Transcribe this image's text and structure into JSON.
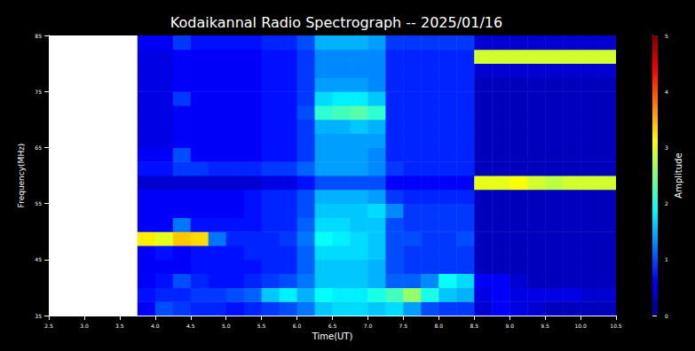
{
  "chart_data": {
    "type": "heatmap",
    "title": "Kodaikannal Radio Spectrograph -- 2025/01/16",
    "x_label": "Time(UT)",
    "y_label": "Frequency(MHz)",
    "x_bins": [
      2.5,
      2.75,
      3.0,
      3.25,
      3.5,
      3.75,
      4.0,
      4.25,
      4.5,
      4.75,
      5.0,
      5.25,
      5.5,
      5.75,
      6.0,
      6.25,
      6.5,
      6.75,
      7.0,
      7.25,
      7.5,
      7.75,
      8.0,
      8.25,
      8.5,
      8.75,
      9.0,
      9.25,
      9.5,
      9.75,
      10.0,
      10.25,
      10.5
    ],
    "y_bins": [
      35,
      37.5,
      40,
      42.5,
      45,
      47.5,
      50,
      52.5,
      55,
      57.5,
      60,
      62.5,
      65,
      67.5,
      70,
      72.5,
      75,
      77.5,
      80,
      82.5,
      85
    ],
    "cells": [
      [
        null,
        null,
        null,
        null,
        null,
        0.6,
        1.0,
        0.9,
        0.8,
        0.8,
        0.7,
        0.8,
        0.9,
        1.0,
        1.2,
        1.6,
        1.7,
        1.7,
        1.6,
        1.7,
        1.4,
        1.0,
        0.9,
        0.9,
        0.4,
        0.6,
        0.5,
        0.4,
        0.3,
        0.3,
        0.3,
        0.3
      ],
      [
        null,
        null,
        null,
        null,
        null,
        0.7,
        0.8,
        0.8,
        0.9,
        0.9,
        1.0,
        1.1,
        1.6,
        1.8,
        1.5,
        1.9,
        1.8,
        1.8,
        2.0,
        2.2,
        2.6,
        2.0,
        1.6,
        1.5,
        0.5,
        0.6,
        0.5,
        0.5,
        0.5,
        0.5,
        0.4,
        0.4
      ],
      [
        null,
        null,
        null,
        null,
        null,
        0.6,
        0.7,
        1.0,
        0.8,
        0.7,
        0.7,
        0.8,
        0.9,
        1.0,
        1.2,
        1.6,
        1.6,
        1.6,
        1.5,
        1.1,
        1.1,
        1.3,
        1.9,
        1.7,
        0.6,
        0.6,
        0.4,
        0.3,
        0.3,
        0.3,
        0.3,
        0.3
      ],
      [
        null,
        null,
        null,
        null,
        null,
        0.6,
        0.6,
        0.6,
        0.7,
        0.7,
        0.7,
        0.7,
        0.8,
        0.8,
        1.1,
        1.6,
        1.6,
        1.6,
        1.5,
        1.0,
        0.9,
        0.9,
        0.9,
        0.9,
        0.3,
        0.3,
        0.3,
        0.3,
        0.3,
        0.3,
        0.3,
        0.3
      ],
      [
        null,
        null,
        null,
        null,
        null,
        0.6,
        0.7,
        0.6,
        0.7,
        0.7,
        0.7,
        0.8,
        0.8,
        0.8,
        1.1,
        1.7,
        1.7,
        1.7,
        1.6,
        1.0,
        0.9,
        0.9,
        0.9,
        0.9,
        0.3,
        0.3,
        0.3,
        0.3,
        0.3,
        0.3,
        0.3,
        0.3
      ],
      [
        null,
        null,
        null,
        null,
        null,
        3.2,
        3.0,
        3.4,
        3.3,
        1.2,
        0.8,
        0.8,
        0.8,
        0.9,
        1.2,
        1.9,
        1.8,
        1.7,
        1.6,
        1.0,
        1.0,
        0.9,
        0.9,
        1.0,
        0.3,
        0.3,
        0.3,
        0.3,
        0.3,
        0.3,
        0.3,
        0.3
      ],
      [
        null,
        null,
        null,
        null,
        null,
        0.6,
        0.6,
        1.2,
        0.7,
        0.7,
        0.7,
        0.7,
        0.8,
        0.8,
        1.1,
        1.7,
        1.7,
        1.6,
        1.6,
        1.0,
        0.9,
        0.9,
        0.9,
        0.9,
        0.3,
        0.3,
        0.3,
        0.3,
        0.3,
        0.3,
        0.3,
        0.3
      ],
      [
        null,
        null,
        null,
        null,
        null,
        0.6,
        0.6,
        0.6,
        0.6,
        0.6,
        0.6,
        0.7,
        0.8,
        0.8,
        1.0,
        1.6,
        1.6,
        1.6,
        1.7,
        1.3,
        0.9,
        0.9,
        0.9,
        0.9,
        0.3,
        0.3,
        0.3,
        0.3,
        0.3,
        0.3,
        0.3,
        0.3
      ],
      [
        null,
        null,
        null,
        null,
        null,
        0.6,
        0.6,
        0.6,
        0.6,
        0.6,
        0.6,
        0.7,
        0.8,
        0.8,
        1.0,
        1.5,
        1.5,
        1.5,
        1.4,
        0.9,
        0.8,
        0.8,
        0.8,
        0.8,
        0.3,
        0.3,
        0.3,
        0.3,
        0.3,
        0.3,
        0.3,
        0.3
      ],
      [
        null,
        null,
        null,
        null,
        null,
        0.4,
        0.4,
        0.4,
        0.4,
        0.4,
        0.4,
        0.4,
        0.5,
        0.5,
        0.7,
        1.0,
        1.0,
        1.0,
        1.0,
        0.6,
        0.6,
        0.6,
        0.6,
        0.6,
        3.0,
        3.0,
        3.1,
        2.9,
        2.8,
        2.9,
        2.9,
        2.9
      ],
      [
        null,
        null,
        null,
        null,
        null,
        0.7,
        0.7,
        0.9,
        0.9,
        0.8,
        0.8,
        0.8,
        0.9,
        0.9,
        1.1,
        1.4,
        1.4,
        1.4,
        1.3,
        0.9,
        0.8,
        0.8,
        0.8,
        0.8,
        0.3,
        0.3,
        0.3,
        0.3,
        0.3,
        0.3,
        0.3,
        0.3
      ],
      [
        null,
        null,
        null,
        null,
        null,
        0.6,
        0.6,
        1.0,
        0.6,
        0.6,
        0.6,
        0.6,
        0.7,
        0.7,
        0.9,
        1.4,
        1.4,
        1.4,
        1.3,
        0.8,
        0.8,
        0.8,
        0.8,
        0.8,
        0.3,
        0.3,
        0.3,
        0.3,
        0.3,
        0.3,
        0.3,
        0.3
      ],
      [
        null,
        null,
        null,
        null,
        null,
        0.5,
        0.5,
        0.6,
        0.6,
        0.6,
        0.6,
        0.6,
        0.7,
        0.7,
        0.9,
        1.4,
        1.4,
        1.4,
        1.4,
        0.8,
        0.8,
        0.8,
        0.8,
        0.8,
        0.3,
        0.3,
        0.3,
        0.3,
        0.3,
        0.3,
        0.3,
        0.3
      ],
      [
        null,
        null,
        null,
        null,
        null,
        0.5,
        0.5,
        0.6,
        0.6,
        0.6,
        0.6,
        0.6,
        0.7,
        0.7,
        0.9,
        1.5,
        1.5,
        1.6,
        1.5,
        0.8,
        0.8,
        0.8,
        0.8,
        0.8,
        0.3,
        0.3,
        0.3,
        0.3,
        0.3,
        0.3,
        0.3,
        0.3
      ],
      [
        null,
        null,
        null,
        null,
        null,
        0.5,
        0.5,
        0.6,
        0.6,
        0.6,
        0.6,
        0.6,
        0.7,
        0.7,
        1.0,
        2.1,
        2.2,
        2.3,
        2.1,
        0.8,
        0.8,
        0.8,
        0.8,
        0.8,
        0.3,
        0.3,
        0.3,
        0.3,
        0.3,
        0.3,
        0.3,
        0.3
      ],
      [
        null,
        null,
        null,
        null,
        null,
        0.5,
        0.5,
        0.9,
        0.6,
        0.6,
        0.6,
        0.6,
        0.7,
        0.7,
        0.9,
        1.7,
        1.8,
        1.8,
        1.6,
        0.8,
        0.8,
        0.8,
        0.8,
        0.8,
        0.3,
        0.3,
        0.3,
        0.3,
        0.3,
        0.3,
        0.3,
        0.3
      ],
      [
        null,
        null,
        null,
        null,
        null,
        0.5,
        0.5,
        0.6,
        0.6,
        0.6,
        0.6,
        0.6,
        0.7,
        0.7,
        0.9,
        1.4,
        1.4,
        1.4,
        1.3,
        0.8,
        0.8,
        0.8,
        0.8,
        0.8,
        0.3,
        0.3,
        0.3,
        0.3,
        0.3,
        0.3,
        0.3,
        0.3
      ],
      [
        null,
        null,
        null,
        null,
        null,
        0.5,
        0.5,
        0.6,
        0.6,
        0.6,
        0.6,
        0.6,
        0.7,
        0.7,
        0.9,
        1.3,
        1.3,
        1.3,
        1.3,
        0.8,
        0.8,
        0.8,
        0.8,
        0.8,
        0.4,
        0.4,
        0.4,
        0.4,
        0.4,
        0.4,
        0.4,
        0.4
      ],
      [
        null,
        null,
        null,
        null,
        null,
        0.5,
        0.5,
        0.6,
        0.6,
        0.6,
        0.6,
        0.6,
        0.7,
        0.7,
        0.9,
        1.3,
        1.3,
        1.3,
        1.3,
        0.8,
        0.8,
        0.8,
        0.8,
        0.8,
        2.9,
        2.9,
        2.9,
        2.9,
        2.9,
        2.9,
        2.9,
        2.9
      ],
      [
        null,
        null,
        null,
        null,
        null,
        0.6,
        0.6,
        0.9,
        0.7,
        0.7,
        0.7,
        0.7,
        0.8,
        0.8,
        1.0,
        1.5,
        1.5,
        1.5,
        1.4,
        0.9,
        0.9,
        0.9,
        0.9,
        0.9,
        0.4,
        0.4,
        0.4,
        0.4,
        0.4,
        0.4,
        0.4,
        0.4
      ]
    ],
    "xlim": [
      2.5,
      10.5
    ],
    "xticks": [
      {
        "value": 2.5,
        "label": "2.5"
      },
      {
        "value": 3,
        "label": "3.0"
      },
      {
        "value": 3.5,
        "label": "3.5"
      },
      {
        "value": 4,
        "label": "4.0"
      },
      {
        "value": 4.5,
        "label": "4.5"
      },
      {
        "value": 5,
        "label": "5.0"
      },
      {
        "value": 5.5,
        "label": "5.5"
      },
      {
        "value": 6,
        "label": "6.0"
      },
      {
        "value": 6.5,
        "label": "6.5"
      },
      {
        "value": 7,
        "label": "7.0"
      },
      {
        "value": 7.5,
        "label": "7.5"
      },
      {
        "value": 8,
        "label": "8.0"
      },
      {
        "value": 8.5,
        "label": "8.5"
      },
      {
        "value": 9,
        "label": "9.0"
      },
      {
        "value": 9.5,
        "label": "9.5"
      },
      {
        "value": 10,
        "label": "10.0"
      },
      {
        "value": 10.5,
        "label": "10.5"
      }
    ],
    "ylim": [
      35,
      85
    ],
    "yticks": [
      35,
      45,
      55,
      65,
      75,
      85
    ],
    "colorbar": {
      "label": "Amplitude",
      "range": [
        0,
        5
      ],
      "ticks": [
        0,
        1,
        2,
        3,
        4,
        5
      ],
      "colors": [
        "#00007f",
        "#0000ff",
        "#007fff",
        "#00ffff",
        "#7fff7f",
        "#ffff00",
        "#ff7f00",
        "#ff0000",
        "#7f0000"
      ]
    }
  }
}
